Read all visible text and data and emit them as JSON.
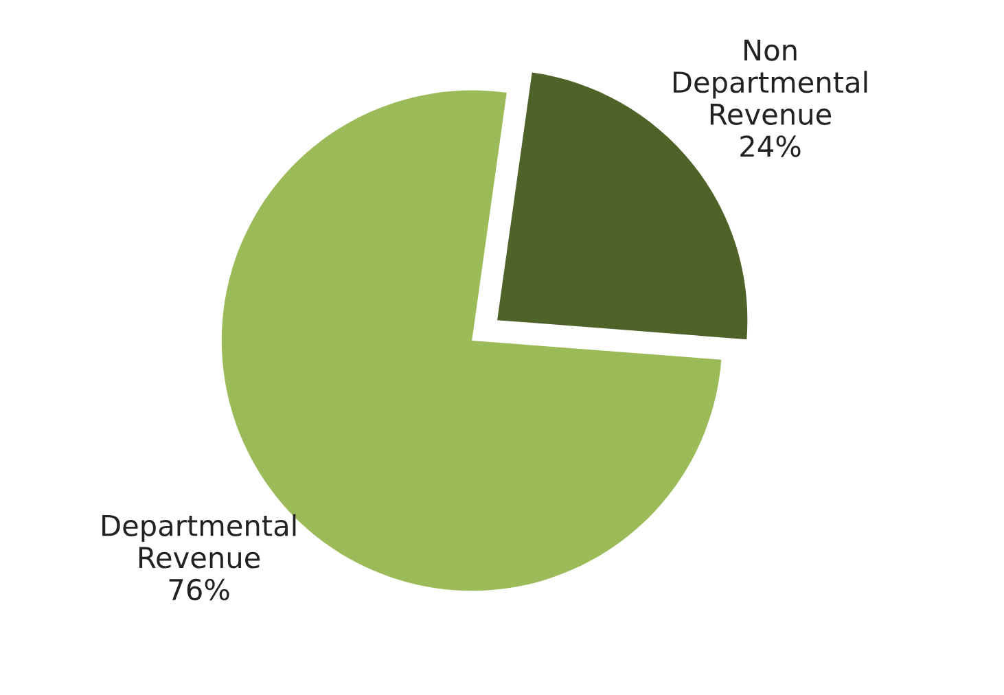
{
  "chart_data": {
    "type": "pie",
    "categories": [
      "Non Departmental Revenue",
      "Departmental Revenue"
    ],
    "values": [
      24,
      76
    ],
    "value_labels": [
      "24%",
      "76%"
    ],
    "colors": [
      "#4f6228",
      "#9bbb59"
    ],
    "legend": false
  }
}
